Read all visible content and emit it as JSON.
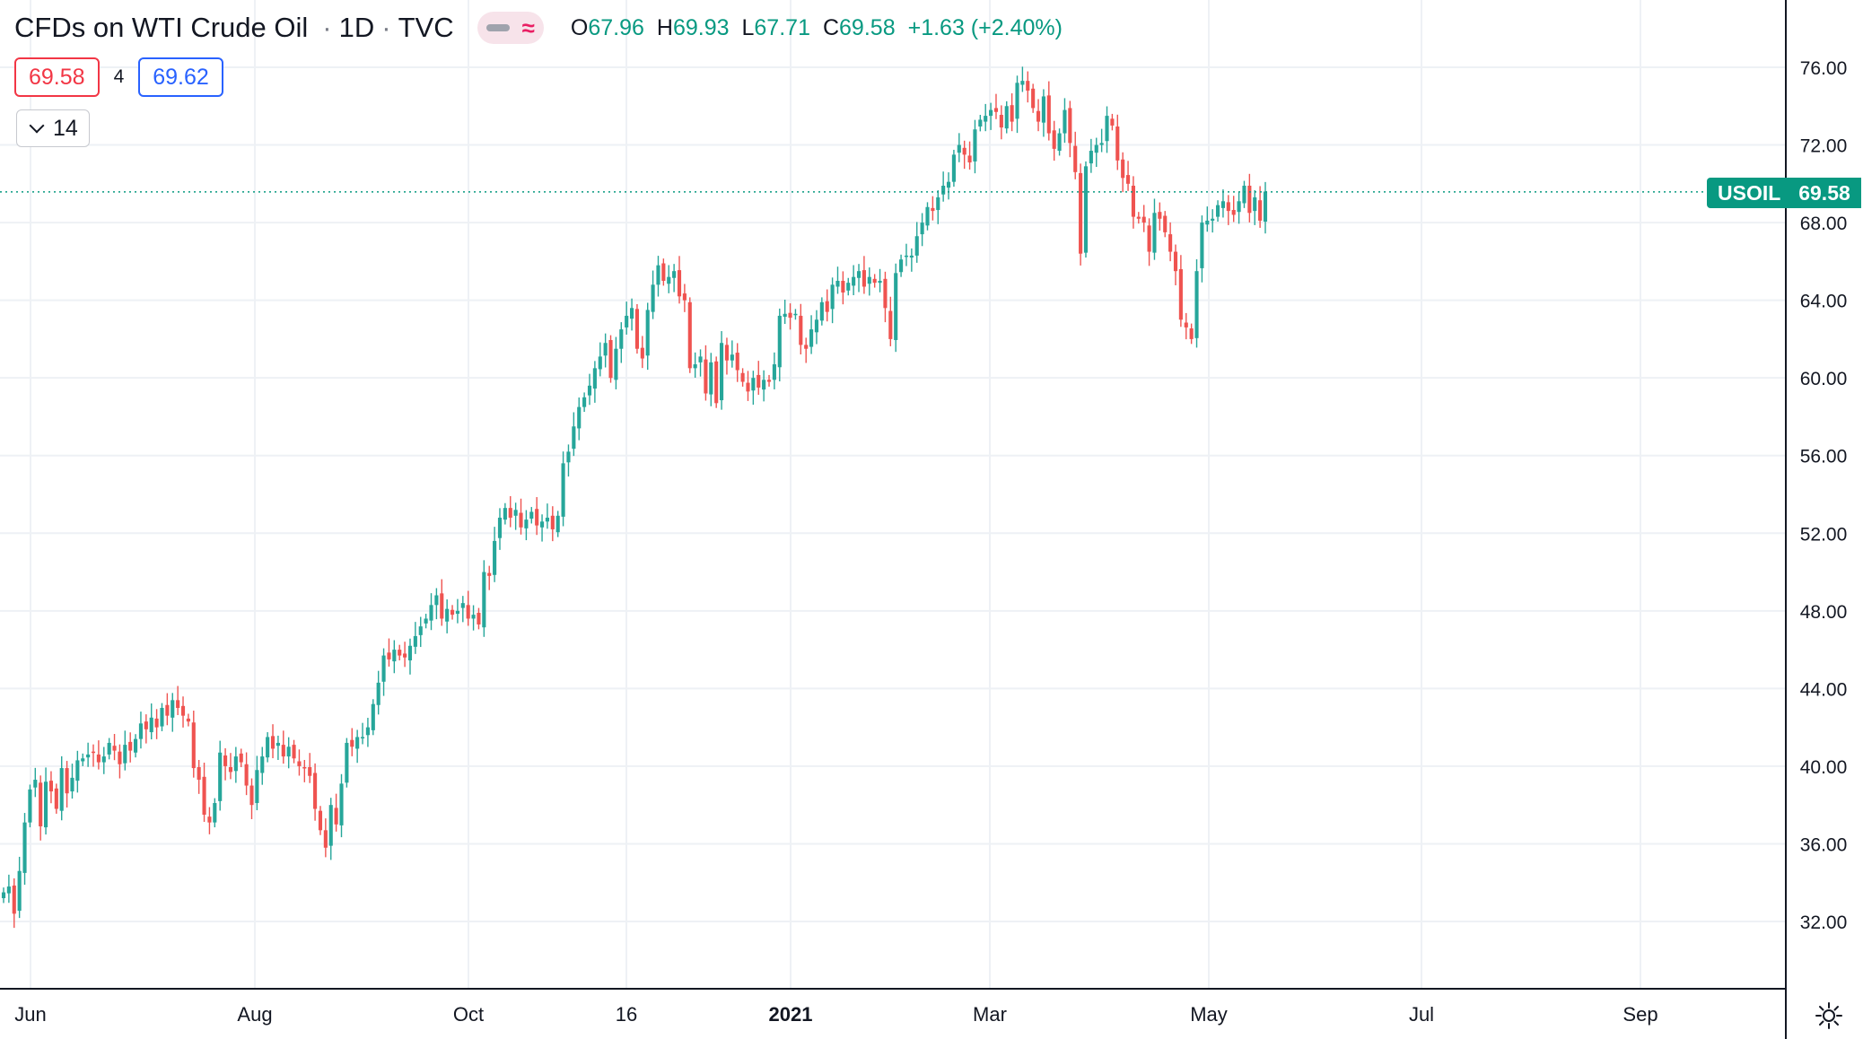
{
  "header": {
    "title": "CFDs on WTI Crude Oil",
    "interval": "1D",
    "source": "TVC",
    "icons": [
      "dash-icon",
      "wave-icon"
    ],
    "ohlc": {
      "o_label": "O",
      "o_value": "67.96",
      "h_label": "H",
      "h_value": "69.93",
      "l_label": "L",
      "l_value": "67.71",
      "c_label": "C",
      "c_value": "69.58",
      "change": "+1.63 (+2.40%)"
    }
  },
  "quote": {
    "bid": "69.58",
    "spread": "4",
    "ask": "69.62"
  },
  "collapse": {
    "count": "14"
  },
  "last_price": {
    "symbol": "USOIL",
    "value": "69.58"
  },
  "colors": {
    "up": "#26a69a",
    "down": "#ef5350",
    "grid": "#eef1f5",
    "tag": "#089981"
  },
  "settings_icon": "gear-icon",
  "chart_data": {
    "type": "candlestick",
    "y_ticks": [
      "76.00",
      "72.00",
      "68.00",
      "64.00",
      "60.00",
      "56.00",
      "52.00",
      "48.00",
      "44.00",
      "40.00",
      "36.00",
      "32.00"
    ],
    "x_ticks": [
      "Jun",
      "Aug",
      "Oct",
      "16",
      "2021",
      "Mar",
      "May",
      "Jul",
      "Sep"
    ],
    "ylim": [
      29,
      78
    ],
    "last_value": 69.58,
    "series": [
      {
        "values": [
          33.5,
          33.8,
          32.4,
          34.6,
          37.1,
          38.8,
          39.3,
          36.9,
          39.2,
          38.7,
          37.8,
          39.9,
          38.6,
          39.4,
          40.3,
          40.4,
          40.6,
          40.7,
          40.2,
          40.5,
          41.2,
          40.8,
          40.1,
          41.1,
          40.8,
          41.4,
          42.2,
          41.9,
          42.5,
          42.0,
          43.0,
          42.6,
          43.4,
          43.0,
          42.6,
          42.3,
          39.9,
          39.3,
          37.5,
          37.1,
          38.1,
          40.7,
          40.0,
          39.7,
          40.5,
          40.2,
          39.0,
          38.0,
          39.8,
          40.5,
          41.5,
          40.9,
          41.2,
          40.5,
          41.0,
          40.4,
          40.0,
          39.9,
          39.5,
          37.8,
          36.7,
          35.8,
          38.0,
          37.0,
          39.1,
          41.2,
          41.0,
          41.5,
          41.5,
          42.0,
          43.2,
          44.3,
          45.7,
          45.5,
          46.0,
          45.7,
          45.6,
          46.2,
          46.7,
          47.2,
          47.6,
          48.3,
          48.8,
          47.6,
          48.1,
          47.8,
          48.0,
          48.4,
          47.6,
          47.8,
          47.3,
          50.0,
          49.8,
          51.6,
          52.8,
          53.3,
          52.8,
          53.2,
          52.3,
          52.7,
          53.1,
          52.4,
          52.6,
          52.8,
          52.2,
          52.9,
          55.6,
          56.2,
          57.5,
          58.5,
          59.0,
          59.6,
          60.5,
          61.1,
          61.8,
          60.0,
          61.5,
          62.5,
          63.2,
          63.6,
          61.5,
          61.0,
          63.5,
          64.8,
          65.8,
          65.0,
          65.2,
          65.5,
          64.2,
          64.0,
          60.5,
          60.7,
          61.1,
          59.2,
          60.8,
          58.7,
          61.8,
          60.9,
          61.2,
          60.4,
          59.8,
          59.3,
          60.0,
          59.5,
          59.9,
          59.8,
          60.7,
          63.2,
          63.3,
          63.1,
          63.3,
          61.7,
          61.5,
          62.5,
          63.0,
          63.9,
          63.4,
          64.8,
          65.0,
          64.4,
          64.9,
          65.2,
          65.5,
          64.7,
          65.2,
          64.9,
          65.0,
          63.6,
          62.0,
          65.4,
          66.1,
          66.3,
          66.3,
          67.3,
          68.0,
          68.8,
          68.6,
          69.3,
          69.9,
          70.1,
          71.5,
          72.0,
          71.5,
          71.1,
          72.8,
          73.3,
          73.5,
          73.8,
          73.7,
          72.9,
          74.0,
          73.2,
          75.2,
          75.3,
          74.8,
          73.9,
          73.2,
          74.5,
          72.6,
          71.8,
          72.6,
          73.8,
          72.1,
          70.6,
          66.4,
          70.9,
          71.7,
          72.0,
          72.1,
          73.5,
          73.0,
          71.2,
          70.3,
          70.0,
          68.3,
          68.2,
          68.0,
          66.5,
          68.5,
          68.2,
          67.5,
          66.5,
          65.5,
          63.0,
          62.6,
          62.0,
          65.5,
          68.0,
          68.1,
          68.2,
          68.9,
          69.1,
          68.6,
          68.4,
          69.1,
          69.9,
          68.5,
          69.3,
          68.1,
          69.6
        ]
      }
    ]
  }
}
